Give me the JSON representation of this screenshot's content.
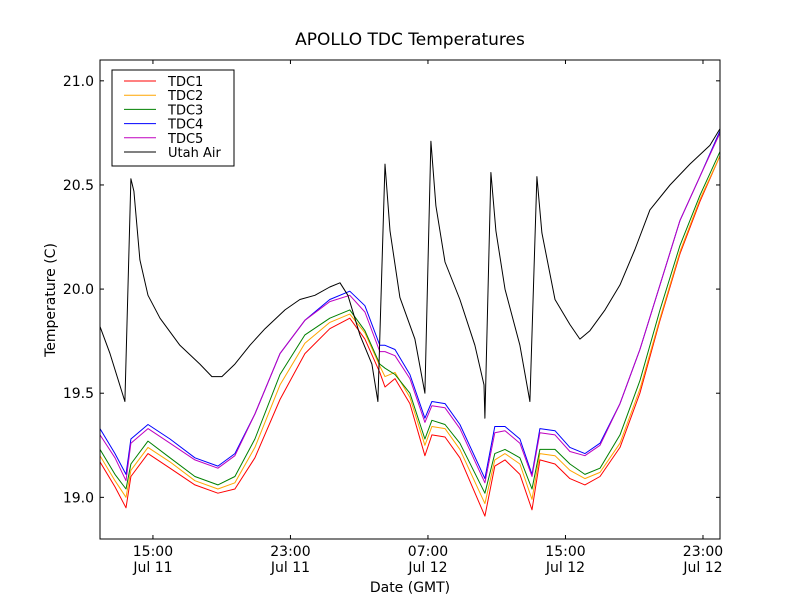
{
  "chart_data": {
    "type": "line",
    "title": "APOLLO TDC Temperatures",
    "xlabel": "Date (GMT)",
    "ylabel": "Temperature (C)",
    "x_units": "hours since Jul 11 00:00 GMT",
    "xlim": [
      11.92,
      47.99
    ],
    "ylim": [
      18.8,
      21.1
    ],
    "grid": false,
    "legend_position": "top-left",
    "x_ticks": [
      {
        "value": 15,
        "label_time": "15:00",
        "label_date": "Jul 11"
      },
      {
        "value": 23,
        "label_time": "23:00",
        "label_date": "Jul 11"
      },
      {
        "value": 31,
        "label_time": "07:00",
        "label_date": "Jul 12"
      },
      {
        "value": 39,
        "label_time": "15:00",
        "label_date": "Jul 12"
      },
      {
        "value": 47,
        "label_time": "23:00",
        "label_date": "Jul 12"
      }
    ],
    "y_ticks": [
      {
        "value": 19.0,
        "label": "19.0"
      },
      {
        "value": 19.5,
        "label": "19.5"
      },
      {
        "value": 20.0,
        "label": "20.0"
      },
      {
        "value": 20.5,
        "label": "20.5"
      },
      {
        "value": 21.0,
        "label": "21.0"
      }
    ],
    "series": [
      {
        "name": "TDC1",
        "color": "#ff0000",
        "x": [
          11.92,
          12.79,
          13.43,
          13.72,
          14.71,
          15.99,
          17.44,
          18.78,
          19.77,
          20.93,
          22.39,
          23.84,
          25.29,
          26.45,
          27.33,
          28.2,
          28.5,
          29.08,
          29.95,
          30.82,
          31.23,
          31.99,
          32.86,
          34.31,
          34.89,
          35.48,
          36.35,
          37.05,
          37.51,
          38.39,
          39.26,
          40.13,
          41.01,
          42.17,
          43.33,
          44.5,
          45.66,
          46.82,
          47.99
        ],
        "y": [
          19.17,
          19.05,
          18.95,
          19.1,
          19.21,
          19.14,
          19.06,
          19.02,
          19.04,
          19.19,
          19.47,
          19.69,
          19.81,
          19.86,
          19.76,
          19.6,
          19.53,
          19.57,
          19.45,
          19.2,
          19.3,
          19.29,
          19.19,
          18.91,
          19.15,
          19.18,
          19.11,
          18.94,
          19.18,
          19.16,
          19.09,
          19.06,
          19.1,
          19.24,
          19.5,
          19.85,
          20.17,
          20.42,
          20.64
        ]
      },
      {
        "name": "TDC2",
        "color": "#ffa500",
        "x": [
          11.92,
          12.79,
          13.43,
          13.72,
          14.71,
          15.99,
          17.44,
          18.78,
          19.77,
          20.93,
          22.39,
          23.84,
          25.29,
          26.45,
          27.33,
          28.2,
          28.5,
          29.08,
          29.95,
          30.82,
          31.23,
          31.99,
          32.86,
          34.31,
          34.89,
          35.48,
          36.35,
          37.05,
          37.51,
          38.39,
          39.26,
          40.13,
          41.01,
          42.17,
          43.33,
          44.5,
          45.66,
          46.82,
          47.99
        ],
        "y": [
          19.2,
          19.08,
          19.0,
          19.13,
          19.24,
          19.17,
          19.08,
          19.04,
          19.07,
          19.24,
          19.54,
          19.74,
          19.84,
          19.88,
          19.79,
          19.63,
          19.58,
          19.6,
          19.48,
          19.25,
          19.34,
          19.33,
          19.23,
          18.97,
          19.18,
          19.21,
          19.16,
          18.99,
          19.21,
          19.2,
          19.13,
          19.09,
          19.12,
          19.26,
          19.52,
          19.86,
          20.18,
          20.43,
          20.64
        ]
      },
      {
        "name": "TDC3",
        "color": "#008000",
        "x": [
          11.92,
          12.79,
          13.43,
          13.72,
          14.71,
          15.99,
          17.44,
          18.78,
          19.77,
          20.93,
          22.39,
          23.84,
          25.29,
          26.45,
          27.33,
          28.2,
          28.5,
          29.08,
          29.95,
          30.82,
          31.23,
          31.99,
          32.86,
          34.31,
          34.89,
          35.48,
          36.35,
          37.05,
          37.51,
          38.39,
          39.26,
          40.13,
          41.01,
          42.17,
          43.33,
          44.5,
          45.66,
          46.82,
          47.99
        ],
        "y": [
          19.23,
          19.11,
          19.04,
          19.16,
          19.27,
          19.19,
          19.1,
          19.06,
          19.1,
          19.28,
          19.59,
          19.78,
          19.86,
          19.9,
          19.8,
          19.64,
          19.62,
          19.59,
          19.5,
          19.28,
          19.37,
          19.35,
          19.26,
          19.02,
          19.21,
          19.23,
          19.19,
          19.04,
          19.23,
          19.23,
          19.16,
          19.11,
          19.14,
          19.3,
          19.56,
          19.9,
          20.21,
          20.45,
          20.66
        ]
      },
      {
        "name": "TDC4",
        "color": "#0000ff",
        "x": [
          11.92,
          12.79,
          13.43,
          13.72,
          14.71,
          15.99,
          17.44,
          18.78,
          19.77,
          20.93,
          22.39,
          23.84,
          25.29,
          26.45,
          27.33,
          28.2,
          28.5,
          29.08,
          29.95,
          30.82,
          31.23,
          31.99,
          32.86,
          34.31,
          34.89,
          35.48,
          36.35,
          37.05,
          37.51,
          38.39,
          39.26,
          40.13,
          41.01,
          42.17,
          43.33,
          44.5,
          45.66,
          46.82,
          47.99
        ],
        "y": [
          19.33,
          19.21,
          19.11,
          19.28,
          19.35,
          19.28,
          19.19,
          19.15,
          19.21,
          19.4,
          19.69,
          19.85,
          19.95,
          19.99,
          19.92,
          19.73,
          19.73,
          19.71,
          19.59,
          19.38,
          19.46,
          19.45,
          19.35,
          19.09,
          19.34,
          19.34,
          19.28,
          19.11,
          19.33,
          19.32,
          19.24,
          19.21,
          19.26,
          19.45,
          19.71,
          20.02,
          20.33,
          20.54,
          20.76
        ]
      },
      {
        "name": "TDC5",
        "color": "#bf00bf",
        "x": [
          11.92,
          12.79,
          13.43,
          13.72,
          14.71,
          15.99,
          17.44,
          18.78,
          19.77,
          20.93,
          22.39,
          23.84,
          25.29,
          26.45,
          27.33,
          28.2,
          28.5,
          29.08,
          29.95,
          30.82,
          31.23,
          31.99,
          32.86,
          34.31,
          34.89,
          35.48,
          36.35,
          37.05,
          37.51,
          38.39,
          39.26,
          40.13,
          41.01,
          42.17,
          43.33,
          44.5,
          45.66,
          46.82,
          47.99
        ],
        "y": [
          19.3,
          19.19,
          19.08,
          19.26,
          19.33,
          19.26,
          19.18,
          19.14,
          19.2,
          19.4,
          19.69,
          19.85,
          19.94,
          19.97,
          19.89,
          19.7,
          19.7,
          19.68,
          19.57,
          19.36,
          19.44,
          19.43,
          19.33,
          19.07,
          19.31,
          19.32,
          19.26,
          19.1,
          19.31,
          19.3,
          19.22,
          19.2,
          19.25,
          19.45,
          19.71,
          20.02,
          20.33,
          20.54,
          20.75
        ]
      },
      {
        "name": "Utah Air",
        "color": "#000000",
        "x": [
          11.92,
          12.5,
          13.37,
          13.72,
          13.89,
          14.24,
          14.71,
          15.41,
          16.57,
          17.73,
          18.43,
          19.01,
          19.77,
          20.64,
          21.52,
          22.68,
          23.55,
          24.42,
          25.29,
          25.88,
          26.34,
          27.04,
          27.74,
          28.09,
          28.5,
          28.79,
          29.37,
          30.24,
          30.82,
          31.17,
          31.46,
          31.99,
          32.86,
          33.73,
          34.26,
          34.31,
          34.66,
          34.95,
          35.48,
          36.35,
          36.93,
          37.34,
          37.63,
          38.39,
          39.26,
          39.84,
          40.42,
          41.3,
          42.17,
          43.04,
          43.91,
          45.08,
          46.24,
          47.4,
          47.99
        ],
        "y": [
          19.82,
          19.69,
          19.46,
          20.53,
          20.47,
          20.14,
          19.97,
          19.86,
          19.73,
          19.64,
          19.58,
          19.58,
          19.64,
          19.73,
          19.81,
          19.9,
          19.95,
          19.97,
          20.01,
          20.03,
          19.97,
          19.78,
          19.64,
          19.46,
          20.6,
          20.28,
          19.96,
          19.76,
          19.5,
          20.71,
          20.4,
          20.13,
          19.95,
          19.73,
          19.54,
          19.38,
          20.56,
          20.28,
          20.0,
          19.73,
          19.46,
          20.54,
          20.27,
          19.95,
          19.83,
          19.76,
          19.8,
          19.9,
          20.02,
          20.19,
          20.38,
          20.5,
          20.6,
          20.69,
          20.77
        ]
      }
    ]
  }
}
